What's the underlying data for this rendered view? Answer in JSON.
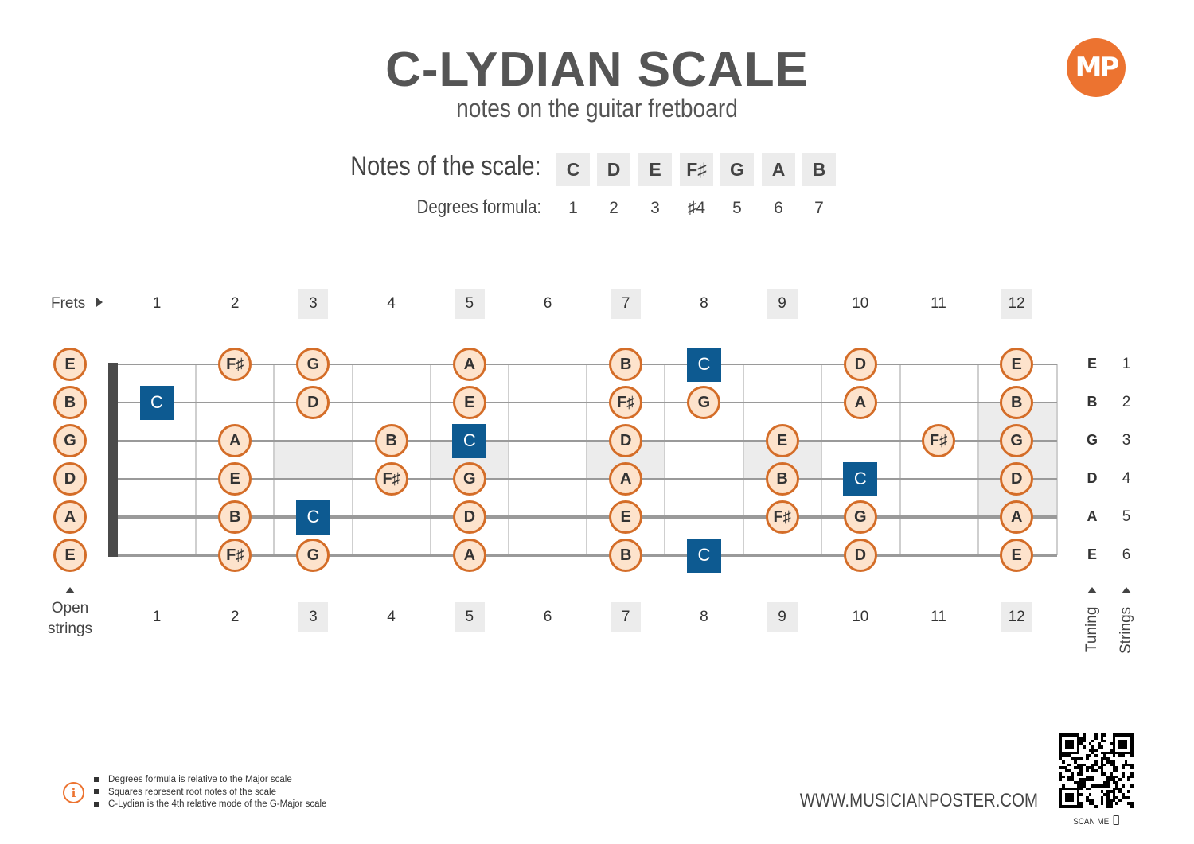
{
  "title": "C-LYDIAN SCALE",
  "subtitle": "notes on the guitar fretboard",
  "logo": "MP",
  "scale": {
    "notes_label": "Notes of the scale:",
    "degrees_label": "Degrees formula:",
    "notes": [
      "C",
      "D",
      "E",
      "F♯",
      "G",
      "A",
      "B"
    ],
    "degrees": [
      "1",
      "2",
      "3",
      "♯4",
      "5",
      "6",
      "7"
    ]
  },
  "fretboard": {
    "frets_label": "Frets",
    "open_strings_label": [
      "Open",
      "strings"
    ],
    "fret_numbers": [
      "1",
      "2",
      "3",
      "4",
      "5",
      "6",
      "7",
      "8",
      "9",
      "10",
      "11",
      "12"
    ],
    "marked_frets": [
      3,
      5,
      7,
      9,
      12
    ],
    "tuning_label": "Tuning",
    "strings_label": "Strings",
    "strings": [
      {
        "number": "1",
        "tuning": "E",
        "notes": [
          {
            "fret": 0,
            "note": "E"
          },
          {
            "fret": 2,
            "note": "F♯"
          },
          {
            "fret": 3,
            "note": "G"
          },
          {
            "fret": 5,
            "note": "A"
          },
          {
            "fret": 7,
            "note": "B"
          },
          {
            "fret": 8,
            "note": "C",
            "root": true
          },
          {
            "fret": 10,
            "note": "D"
          },
          {
            "fret": 12,
            "note": "E"
          }
        ]
      },
      {
        "number": "2",
        "tuning": "B",
        "notes": [
          {
            "fret": 0,
            "note": "B"
          },
          {
            "fret": 1,
            "note": "C",
            "root": true
          },
          {
            "fret": 3,
            "note": "D"
          },
          {
            "fret": 5,
            "note": "E"
          },
          {
            "fret": 7,
            "note": "F♯"
          },
          {
            "fret": 8,
            "note": "G"
          },
          {
            "fret": 10,
            "note": "A"
          },
          {
            "fret": 12,
            "note": "B"
          }
        ]
      },
      {
        "number": "3",
        "tuning": "G",
        "notes": [
          {
            "fret": 0,
            "note": "G"
          },
          {
            "fret": 2,
            "note": "A"
          },
          {
            "fret": 4,
            "note": "B"
          },
          {
            "fret": 5,
            "note": "C",
            "root": true
          },
          {
            "fret": 7,
            "note": "D"
          },
          {
            "fret": 9,
            "note": "E"
          },
          {
            "fret": 11,
            "note": "F♯"
          },
          {
            "fret": 12,
            "note": "G"
          }
        ]
      },
      {
        "number": "4",
        "tuning": "D",
        "notes": [
          {
            "fret": 0,
            "note": "D"
          },
          {
            "fret": 2,
            "note": "E"
          },
          {
            "fret": 4,
            "note": "F♯"
          },
          {
            "fret": 5,
            "note": "G"
          },
          {
            "fret": 7,
            "note": "A"
          },
          {
            "fret": 9,
            "note": "B"
          },
          {
            "fret": 10,
            "note": "C",
            "root": true
          },
          {
            "fret": 12,
            "note": "D"
          }
        ]
      },
      {
        "number": "5",
        "tuning": "A",
        "notes": [
          {
            "fret": 0,
            "note": "A"
          },
          {
            "fret": 2,
            "note": "B"
          },
          {
            "fret": 3,
            "note": "C",
            "root": true
          },
          {
            "fret": 5,
            "note": "D"
          },
          {
            "fret": 7,
            "note": "E"
          },
          {
            "fret": 9,
            "note": "F♯"
          },
          {
            "fret": 10,
            "note": "G"
          },
          {
            "fret": 12,
            "note": "A"
          }
        ]
      },
      {
        "number": "6",
        "tuning": "E",
        "notes": [
          {
            "fret": 0,
            "note": "E"
          },
          {
            "fret": 2,
            "note": "F♯"
          },
          {
            "fret": 3,
            "note": "G"
          },
          {
            "fret": 5,
            "note": "A"
          },
          {
            "fret": 7,
            "note": "B"
          },
          {
            "fret": 8,
            "note": "C",
            "root": true
          },
          {
            "fret": 10,
            "note": "D"
          },
          {
            "fret": 12,
            "note": "E"
          }
        ]
      }
    ]
  },
  "legend": [
    "Degrees formula is relative to the Major scale",
    "Squares represent root notes of the scale",
    "C-Lydian is the 4th relative mode of the G-Major scale"
  ],
  "website": "WWW.MUSICIANPOSTER.COM",
  "scan_label": "SCAN ME",
  "colors": {
    "accent": "#ec7330",
    "root": "#0d5a91",
    "note_fill": "#fde3cc",
    "title": "#555555"
  }
}
